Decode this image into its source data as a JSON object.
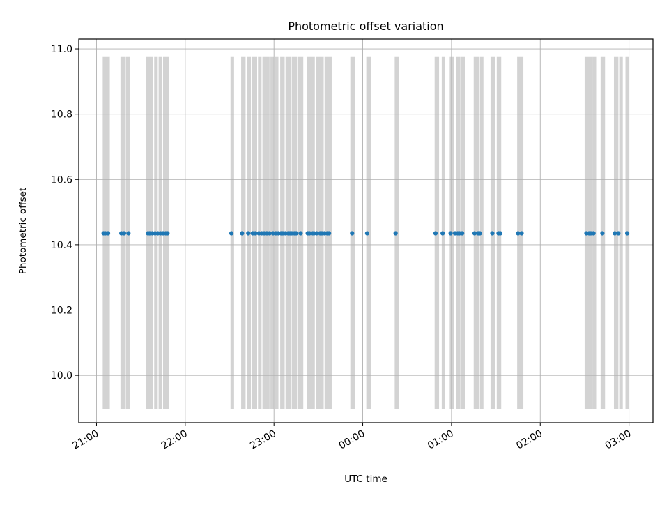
{
  "chart_data": {
    "type": "scatter",
    "title": "Photometric offset variation",
    "xlabel": "UTC time",
    "ylabel": "Photometric offset",
    "x_unit": "hours after 21:00 UTC",
    "xlim": [
      -0.2,
      6.27
    ],
    "ylim": [
      9.855,
      11.03
    ],
    "x_ticks": [
      0,
      1,
      2,
      3,
      4,
      5,
      6
    ],
    "x_tick_labels": [
      "21:00",
      "22:00",
      "23:00",
      "00:00",
      "01:00",
      "02:00",
      "03:00"
    ],
    "y_ticks": [
      10.0,
      10.2,
      10.4,
      10.6,
      10.8,
      11.0
    ],
    "y_tick_labels": [
      "10.0",
      "10.2",
      "10.4",
      "10.6",
      "10.8",
      "11.0"
    ],
    "grid": true,
    "band_range": [
      9.897,
      10.975
    ],
    "band_color": "#d3d3d3",
    "point_color": "#1f77b4",
    "offset_value": 10.435,
    "bands": [
      [
        0.07,
        0.15
      ],
      [
        0.27,
        0.32
      ],
      [
        0.33,
        0.38
      ],
      [
        0.56,
        0.64
      ],
      [
        0.65,
        0.69
      ],
      [
        0.7,
        0.74
      ],
      [
        0.75,
        0.79
      ],
      [
        0.79,
        0.82
      ],
      [
        1.51,
        1.55
      ],
      [
        1.63,
        1.68
      ],
      [
        1.7,
        1.74
      ],
      [
        1.75,
        1.81
      ],
      [
        1.82,
        1.86
      ],
      [
        1.87,
        1.95
      ],
      [
        1.96,
        2.0
      ],
      [
        2.01,
        2.05
      ],
      [
        2.07,
        2.12
      ],
      [
        2.13,
        2.19
      ],
      [
        2.2,
        2.26
      ],
      [
        2.27,
        2.33
      ],
      [
        2.37,
        2.46
      ],
      [
        2.47,
        2.5
      ],
      [
        2.5,
        2.56
      ],
      [
        2.57,
        2.65
      ],
      [
        2.86,
        2.91
      ],
      [
        3.04,
        3.09
      ],
      [
        3.36,
        3.41
      ],
      [
        3.81,
        3.86
      ],
      [
        3.89,
        3.93
      ],
      [
        3.98,
        4.03
      ],
      [
        4.05,
        4.1
      ],
      [
        4.11,
        4.15
      ],
      [
        4.25,
        4.31
      ],
      [
        4.32,
        4.36
      ],
      [
        4.44,
        4.49
      ],
      [
        4.51,
        4.56
      ],
      [
        4.74,
        4.81
      ],
      [
        5.5,
        5.59
      ],
      [
        5.59,
        5.63
      ],
      [
        5.68,
        5.73
      ],
      [
        5.83,
        5.88
      ],
      [
        5.89,
        5.93
      ],
      [
        5.96,
        6.0
      ]
    ],
    "x": [
      0.08,
      0.1,
      0.13,
      0.28,
      0.31,
      0.36,
      0.58,
      0.6,
      0.63,
      0.66,
      0.69,
      0.72,
      0.75,
      0.78,
      0.8,
      1.52,
      1.64,
      1.71,
      1.76,
      1.79,
      1.83,
      1.86,
      1.89,
      1.92,
      1.95,
      1.99,
      2.02,
      2.05,
      2.08,
      2.1,
      2.13,
      2.16,
      2.18,
      2.2,
      2.23,
      2.25,
      2.3,
      2.38,
      2.4,
      2.43,
      2.45,
      2.48,
      2.52,
      2.54,
      2.57,
      2.6,
      2.62,
      2.88,
      3.05,
      3.37,
      3.82,
      3.9,
      3.99,
      4.04,
      4.07,
      4.09,
      4.12,
      4.26,
      4.3,
      4.32,
      4.46,
      4.53,
      4.55,
      4.75,
      4.79,
      5.52,
      5.55,
      5.57,
      5.6,
      5.7,
      5.84,
      5.88,
      5.98
    ]
  }
}
